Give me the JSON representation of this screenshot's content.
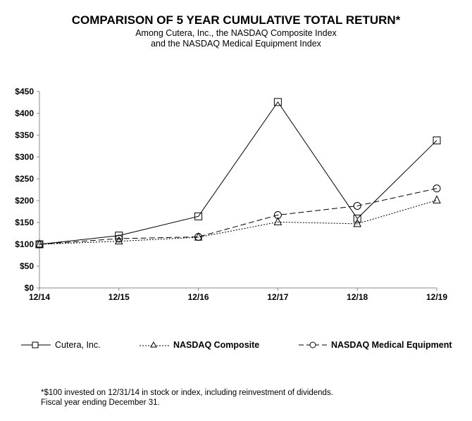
{
  "chart_data": {
    "type": "line",
    "title": "COMPARISON OF 5 YEAR CUMULATIVE TOTAL RETURN*",
    "subtitle": [
      "Among Cutera, Inc., the NASDAQ Composite Index",
      "and the NASDAQ Medical Equipment Index"
    ],
    "categories": [
      "12/14",
      "12/15",
      "12/16",
      "12/17",
      "12/18",
      "12/19"
    ],
    "ylim": [
      0,
      450
    ],
    "yticks": [
      0,
      50,
      100,
      150,
      200,
      250,
      300,
      350,
      400,
      450
    ],
    "ytick_labels": [
      "$0",
      "$50",
      "$100",
      "$150",
      "$200",
      "$250",
      "$300",
      "$350",
      "$400",
      "$450"
    ],
    "grid": false,
    "legend_position": "bottom",
    "series": [
      {
        "name": "Cutera, Inc.",
        "marker": "square",
        "dash": "solid",
        "values": [
          100,
          120,
          164,
          426,
          159,
          338
        ]
      },
      {
        "name": "NASDAQ Composite",
        "marker": "triangle",
        "dash": "dotted",
        "values": [
          100,
          107,
          116,
          151,
          147,
          201
        ]
      },
      {
        "name": "NASDAQ Medical Equipment",
        "marker": "circle",
        "dash": "dashed",
        "values": [
          100,
          113,
          117,
          167,
          188,
          228
        ]
      }
    ]
  },
  "footnote": [
    "*$100 invested on 12/31/14 in stock or index, including reinvestment of dividends.",
    "Fiscal year ending December 31."
  ]
}
